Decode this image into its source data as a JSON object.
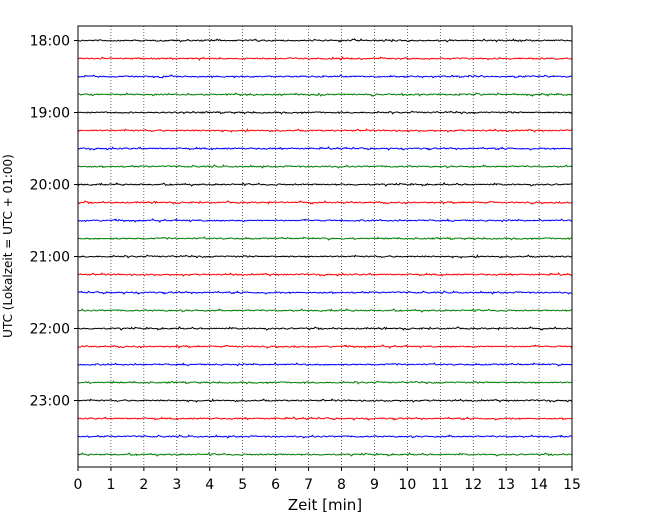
{
  "chart_data": {
    "type": "line",
    "title": "",
    "xlabel": "Zeit  [min]",
    "ylabel": "UTC (Lokalzeit = UTC + 01:00)",
    "xlim": [
      0,
      15
    ],
    "x_ticks": [
      "0",
      "1",
      "2",
      "3",
      "4",
      "5",
      "6",
      "7",
      "8",
      "9",
      "10",
      "11",
      "12",
      "13",
      "14",
      "15"
    ],
    "y_tick_labels": [
      "18:00",
      "19:00",
      "20:00",
      "21:00",
      "22:00",
      "23:00"
    ],
    "trace_start_times": [
      "18:00",
      "18:15",
      "18:30",
      "18:45",
      "19:00",
      "19:15",
      "19:30",
      "19:45",
      "20:00",
      "20:15",
      "20:30",
      "20:45",
      "21:00",
      "21:15",
      "21:30",
      "21:45",
      "22:00",
      "22:15",
      "22:30",
      "22:45",
      "23:00",
      "23:15",
      "23:30",
      "23:45"
    ],
    "trace_colors": [
      "#000000",
      "#ff0000",
      "#0000ff",
      "#008000"
    ],
    "grid": "vertical-dotted",
    "legend": "none"
  }
}
